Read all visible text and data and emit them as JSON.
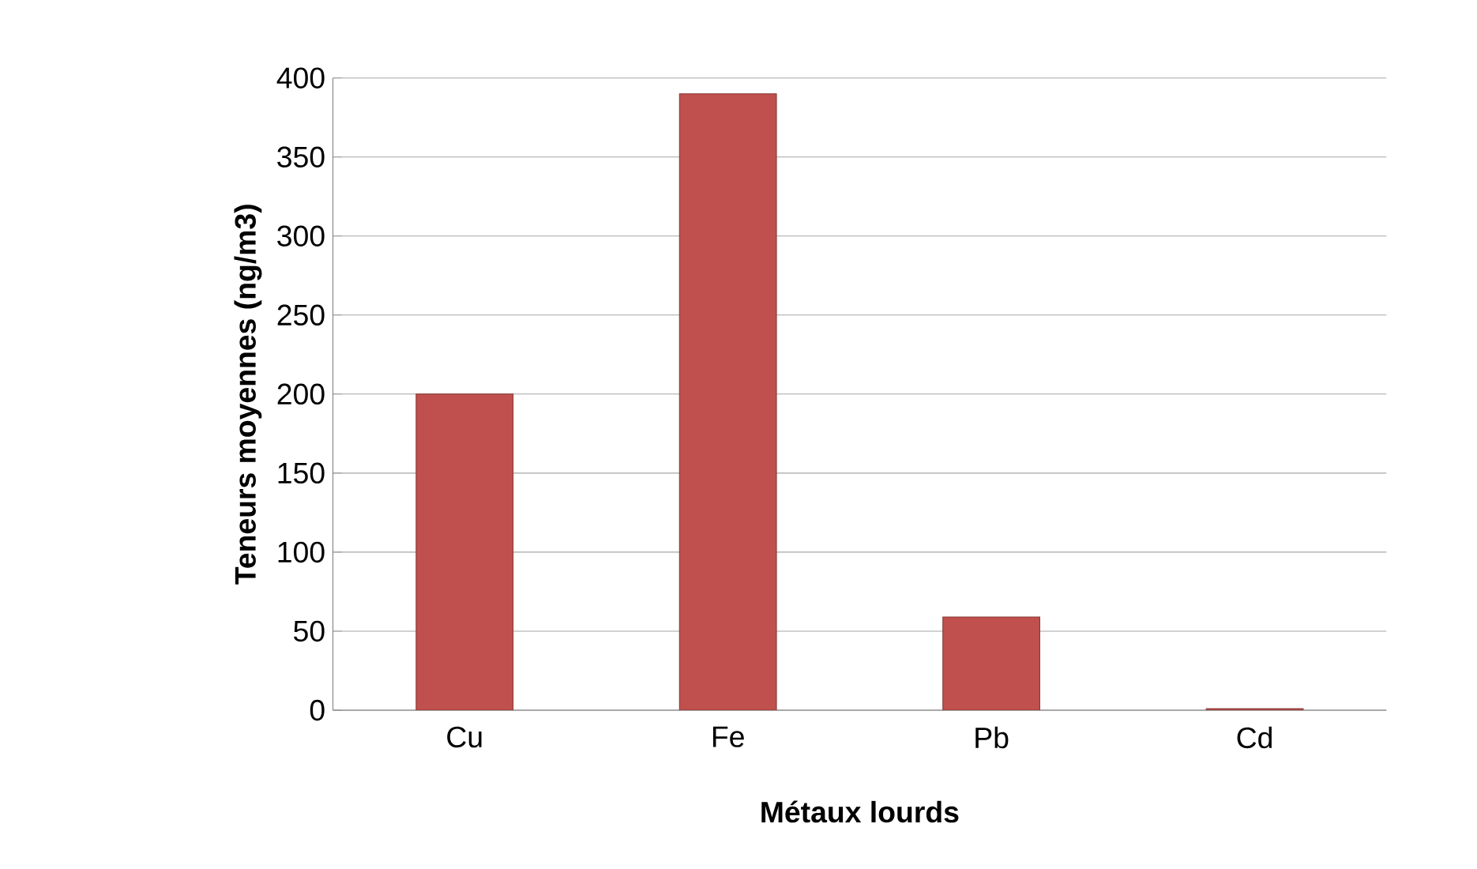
{
  "chart_data": {
    "type": "bar",
    "xlabel": "Métaux lourds",
    "ylabel": "Teneurs moyennes (ng/m3)",
    "categories": [
      "Cu",
      "Fe",
      "Pb",
      "Cd"
    ],
    "values": [
      200,
      390,
      59,
      1
    ],
    "color": "#c0504d",
    "ylim": [
      0,
      400
    ],
    "yticks": [
      0,
      50,
      100,
      150,
      200,
      250,
      300,
      350,
      400
    ],
    "grid": "y"
  }
}
